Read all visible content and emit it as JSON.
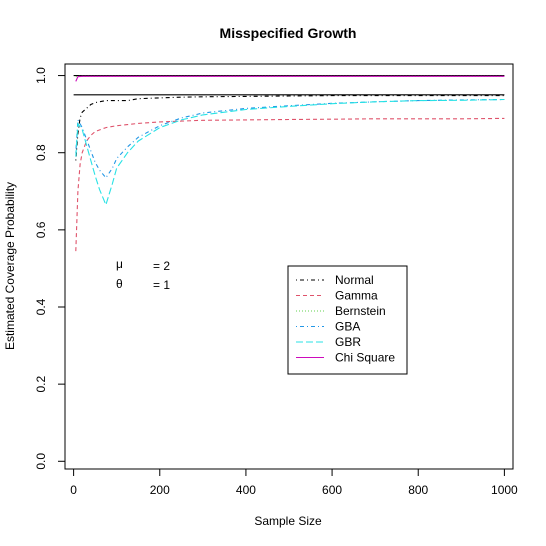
{
  "chart_data": {
    "type": "line",
    "title": "Misspecified Growth",
    "xlabel": "Sample Size",
    "ylabel": "Estimated Coverage Probability",
    "xlim": [
      -20,
      1020
    ],
    "ylim": [
      -0.02,
      1.03
    ],
    "xticks": [
      0,
      200,
      400,
      600,
      800,
      1000
    ],
    "yticks": [
      0.0,
      0.2,
      0.4,
      0.6,
      0.8,
      1.0
    ],
    "ytick_labels": [
      "0.0",
      "0.2",
      "0.4",
      "0.6",
      "0.8",
      "1.0"
    ],
    "grid": false,
    "legend_position": "center-right",
    "reference_lines": [
      {
        "y": 0.95,
        "color": "#000000"
      },
      {
        "y": 1.0,
        "color": "#000000"
      }
    ],
    "annotations": [
      {
        "symbol": "μ",
        "text": "= 2"
      },
      {
        "symbol": "θ",
        "text": "= 1"
      }
    ],
    "series": [
      {
        "name": "Normal",
        "color": "#000000",
        "dash": "dashdot",
        "x": [
          5,
          10,
          15,
          20,
          30,
          40,
          50,
          75,
          100,
          125,
          150,
          200,
          250,
          300,
          400,
          500,
          600,
          700,
          800,
          900,
          1000
        ],
        "y": [
          0.78,
          0.85,
          0.89,
          0.905,
          0.915,
          0.925,
          0.93,
          0.935,
          0.935,
          0.935,
          0.94,
          0.942,
          0.944,
          0.945,
          0.946,
          0.947,
          0.948,
          0.948,
          0.948,
          0.948,
          0.948
        ]
      },
      {
        "name": "Gamma",
        "color": "#DF536B",
        "dash": "dashed",
        "x": [
          5,
          10,
          15,
          20,
          30,
          40,
          50,
          75,
          100,
          125,
          150,
          200,
          250,
          300,
          400,
          500,
          600,
          700,
          800,
          900,
          1000
        ],
        "y": [
          0.545,
          0.7,
          0.77,
          0.8,
          0.83,
          0.845,
          0.855,
          0.865,
          0.87,
          0.873,
          0.876,
          0.88,
          0.882,
          0.884,
          0.885,
          0.886,
          0.887,
          0.888,
          0.888,
          0.888,
          0.889
        ]
      },
      {
        "name": "Bernstein",
        "color": "#61D04F",
        "dash": "dotted",
        "x": [
          5,
          10,
          20,
          50,
          100,
          200,
          400,
          600,
          800,
          1000
        ],
        "y": [
          0.997,
          0.998,
          0.998,
          0.998,
          0.998,
          0.998,
          0.998,
          0.998,
          0.998,
          0.998
        ]
      },
      {
        "name": "GBA",
        "color": "#2297E6",
        "dash": "dashdot",
        "x": [
          5,
          10,
          20,
          30,
          40,
          50,
          60,
          75,
          90,
          100,
          125,
          150,
          200,
          250,
          300,
          400,
          500,
          600,
          700,
          800,
          900,
          1000
        ],
        "y": [
          0.8,
          0.885,
          0.865,
          0.835,
          0.805,
          0.775,
          0.755,
          0.735,
          0.76,
          0.785,
          0.815,
          0.84,
          0.87,
          0.89,
          0.903,
          0.915,
          0.922,
          0.928,
          0.932,
          0.935,
          0.937,
          0.938
        ]
      },
      {
        "name": "GBR",
        "color": "#28E2E5",
        "dash": "longdash",
        "x": [
          5,
          10,
          20,
          30,
          40,
          50,
          60,
          75,
          90,
          100,
          125,
          150,
          200,
          250,
          300,
          400,
          500,
          600,
          700,
          800,
          900,
          1000
        ],
        "y": [
          0.79,
          0.875,
          0.86,
          0.82,
          0.78,
          0.74,
          0.705,
          0.665,
          0.72,
          0.76,
          0.8,
          0.83,
          0.865,
          0.885,
          0.898,
          0.912,
          0.92,
          0.927,
          0.932,
          0.935,
          0.936,
          0.938
        ]
      },
      {
        "name": "Chi Square",
        "color": "#CD0BBC",
        "dash": "solid",
        "x": [
          5,
          10,
          20,
          50,
          100,
          200,
          400,
          600,
          800,
          1000
        ],
        "y": [
          0.985,
          0.997,
          0.998,
          0.998,
          0.998,
          0.998,
          0.998,
          0.998,
          0.998,
          0.998
        ]
      }
    ]
  }
}
